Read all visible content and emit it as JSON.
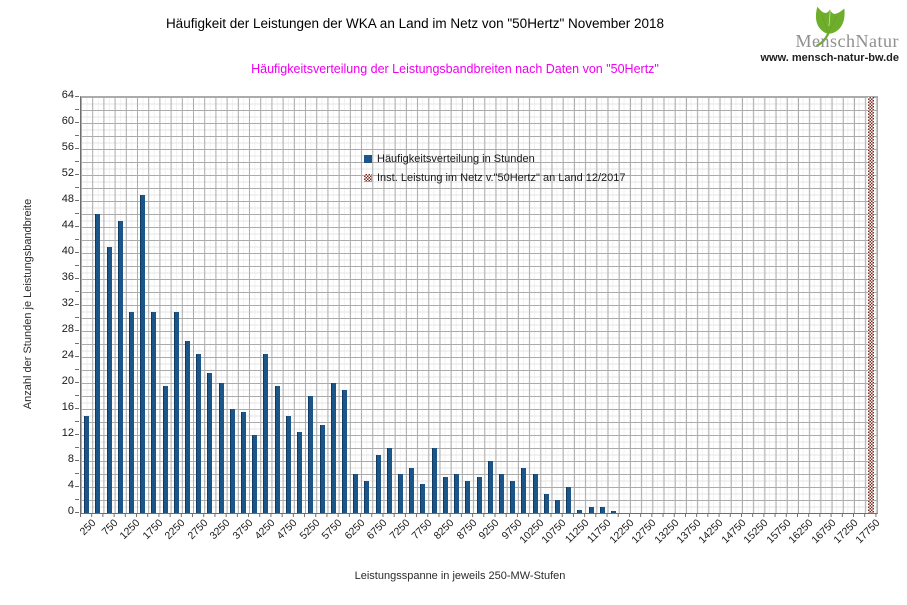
{
  "header": {
    "title": "Häufigkeit der Leistungen der WKA an Land im Netz von \"50Hertz\" November 2018",
    "subtitle": "Häufigkeitsverteilung der Leistungsbandbreiten nach Daten von \"50Hertz\"",
    "logo": {
      "brand": "MenschNatur",
      "website": "www. mensch-natur-bw.de",
      "leaf_icon": "ginkgo-leaf-icon",
      "leaf_color": "#6fae2b",
      "brand_color": "#8f8f8f"
    }
  },
  "legend": [
    {
      "label": "Häufigkeitsverteilung in Stunden",
      "swatch": "solid-square",
      "color": "#1c5688"
    },
    {
      "label": "Inst. Leistung im Netz v.\"50Hertz\" an Land 12/2017",
      "swatch": "checkerboard-square",
      "color": "#7b2a20"
    }
  ],
  "axes": {
    "y_title": "Anzahl der Stunden je Leistungsbandbreite",
    "x_title": "Leistungsspanne in jeweils 250-MW-Stufen"
  },
  "chart_data": {
    "type": "bar",
    "title": "Häufigkeit der Leistungen der WKA an Land im Netz von \"50Hertz\" November 2018",
    "subtitle": "Häufigkeitsverteilung der Leistungsbandbreiten nach Daten von \"50Hertz\"",
    "xlabel": "Leistungsspanne in jeweils 250-MW-Stufen",
    "ylabel": "Anzahl der Stunden je Leistungsbandbreite",
    "ylim": [
      0,
      64
    ],
    "ytick_step": 4,
    "grid": "fine graph-paper grid, major lines every 2 y-units and every category, dotted minor lines",
    "legend_position": "top-center inside plot",
    "categories": [
      250,
      500,
      750,
      1000,
      1250,
      1500,
      1750,
      2000,
      2250,
      2500,
      2750,
      3000,
      3250,
      3500,
      3750,
      4000,
      4250,
      4500,
      4750,
      5000,
      5250,
      5500,
      5750,
      6000,
      6250,
      6500,
      6750,
      7000,
      7250,
      7500,
      7750,
      8000,
      8250,
      8500,
      8750,
      9000,
      9250,
      9500,
      9750,
      10000,
      10250,
      10500,
      10750,
      11000,
      11250,
      11500,
      11750,
      12000,
      12250,
      12500,
      12750,
      13000,
      13250,
      13500,
      13750,
      14000,
      14250,
      14500,
      14750,
      15000,
      15250,
      15500,
      15750,
      16000,
      16250,
      16500,
      16750,
      17000,
      17250,
      17500,
      17750
    ],
    "x_tick_labels": [
      "250",
      "750",
      "1250",
      "1750",
      "2250",
      "2750",
      "3250",
      "3750",
      "4250",
      "4750",
      "5250",
      "5750",
      "6250",
      "6750",
      "7250",
      "7750",
      "8250",
      "8750",
      "9250",
      "9750",
      "10250",
      "10750",
      "11250",
      "11750",
      "12250",
      "12750",
      "13250",
      "13750",
      "14250",
      "14750",
      "15250",
      "15750",
      "16250",
      "16750",
      "17250",
      "17750"
    ],
    "series": [
      {
        "name": "Häufigkeitsverteilung in Stunden",
        "color": "#1c5688",
        "values": [
          15,
          46,
          41,
          45,
          31,
          49,
          31,
          19.5,
          31,
          26.5,
          24.5,
          21.5,
          20,
          16,
          15.5,
          12,
          24.5,
          19.5,
          15,
          12.5,
          18,
          13.5,
          20,
          19,
          6,
          5,
          9,
          10,
          6,
          7,
          4.5,
          10,
          5.5,
          6,
          5,
          5.5,
          8,
          6,
          5,
          7,
          6,
          3,
          2,
          4,
          0.5,
          1,
          1,
          0.25,
          0,
          0,
          0,
          0,
          0,
          0,
          0,
          0,
          0,
          0,
          0,
          0,
          0,
          0,
          0,
          0,
          0,
          0,
          0,
          0,
          0,
          0,
          0
        ]
      },
      {
        "name": "Inst. Leistung im Netz v.\"50Hertz\" an Land 12/2017",
        "style": "dark-red/white checkerboard hatch",
        "color": "#7b2a20",
        "marker_category": 17750,
        "note": "single full-height hatched bar at 17750 MW, clipped at the y-axis maximum"
      }
    ]
  }
}
